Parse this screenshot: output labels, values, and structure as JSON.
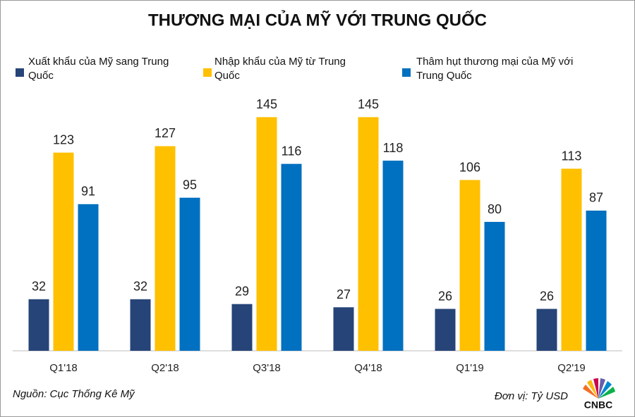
{
  "chart_data": {
    "type": "bar",
    "title": "THƯƠNG MẠI CỦA MỸ VỚI TRUNG QUỐC",
    "categories": [
      "Q1'18",
      "Q2'18",
      "Q3'18",
      "Q4'18",
      "Q1'19",
      "Q2'19"
    ],
    "series": [
      {
        "name": "Xuất khẩu của Mỹ sang Trung Quốc",
        "color": "#264478",
        "values": [
          32,
          32,
          29,
          27,
          26,
          26
        ]
      },
      {
        "name": "Nhập khẩu của Mỹ từ Trung Quốc",
        "color": "#ffc000",
        "values": [
          123,
          127,
          145,
          145,
          106,
          113
        ]
      },
      {
        "name": "Thâm hụt thương mại của Mỹ với Trung Quốc",
        "color": "#0070c0",
        "values": [
          91,
          95,
          116,
          118,
          80,
          87
        ]
      }
    ],
    "ylim": [
      0,
      160
    ],
    "source": "Nguồn: Cục Thống Kê Mỹ",
    "unit": "Đơn vị: Tỷ USD",
    "logo": "CNBC"
  }
}
